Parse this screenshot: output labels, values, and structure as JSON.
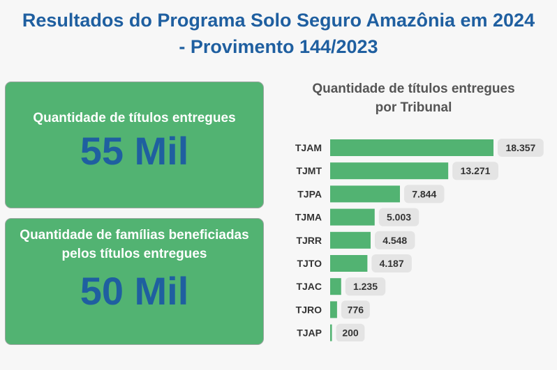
{
  "page": {
    "title_line1": "Resultados do Programa Solo Seguro Amazônia em 2024",
    "title_line2": "- Provimento 144/2023"
  },
  "kpis": [
    {
      "label": "Quantidade de títulos entregues",
      "value": "55 Mil"
    },
    {
      "label_line1": "Quantidade de famílias beneficiadas",
      "label_line2": "pelos títulos entregues",
      "value": "50 Mil"
    }
  ],
  "colors": {
    "accent": "#1f5fa0",
    "card_bg": "#52b372",
    "bar": "#52b372",
    "label_bg": "#e4e4e4"
  },
  "chart_data": {
    "type": "bar",
    "orientation": "horizontal",
    "title_line1": "Quantidade de títulos entregues",
    "title_line2": "por Tribunal",
    "categories": [
      "TJAM",
      "TJMT",
      "TJPA",
      "TJMA",
      "TJRR",
      "TJTO",
      "TJAC",
      "TJRO",
      "TJAP"
    ],
    "values": [
      18357,
      13271,
      7844,
      5003,
      4548,
      4187,
      1235,
      776,
      200
    ],
    "value_labels": [
      "18.357",
      "13.271",
      "7.844",
      "5.003",
      "4.548",
      "4.187",
      "1.235",
      "776",
      "200"
    ],
    "xlim": [
      0,
      18357
    ],
    "grid": false,
    "legend": false
  }
}
